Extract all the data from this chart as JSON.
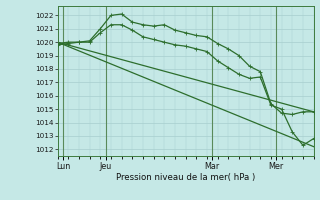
{
  "background_color": "#c5e8e6",
  "grid_color": "#a8cece",
  "line_color": "#2d6e2d",
  "title": "Pression niveau de la mer( hPa )",
  "xlabel_ticks": [
    "Lun",
    "Jeu",
    "Mar",
    "Mer"
  ],
  "xlabel_tick_positions": [
    0.5,
    4.5,
    14.5,
    20.5
  ],
  "ylim": [
    1011.5,
    1022.7
  ],
  "yticks": [
    1012,
    1013,
    1014,
    1015,
    1016,
    1017,
    1018,
    1019,
    1020,
    1021,
    1022
  ],
  "xlim": [
    0,
    24
  ],
  "series1_x": [
    0,
    1,
    2,
    3,
    4,
    5,
    6,
    7,
    8,
    9,
    10,
    11,
    12,
    13,
    14,
    15,
    16,
    17,
    18,
    19,
    20,
    21,
    22,
    23,
    24
  ],
  "series1_y": [
    1019.9,
    1020.0,
    1020.0,
    1020.1,
    1021.0,
    1022.0,
    1022.1,
    1021.5,
    1021.3,
    1021.2,
    1021.3,
    1020.9,
    1020.7,
    1020.5,
    1020.4,
    1019.9,
    1019.5,
    1019.0,
    1018.2,
    1017.8,
    1015.4,
    1014.7,
    1014.6,
    1014.8,
    1014.8
  ],
  "series2_x": [
    0,
    1,
    2,
    3,
    4,
    5,
    6,
    7,
    8,
    9,
    10,
    11,
    12,
    13,
    14,
    15,
    16,
    17,
    18,
    19,
    20,
    21,
    22,
    23,
    24
  ],
  "series2_y": [
    1019.8,
    1019.9,
    1020.0,
    1020.0,
    1020.7,
    1021.3,
    1021.3,
    1020.9,
    1020.4,
    1020.2,
    1020.0,
    1019.8,
    1019.7,
    1019.5,
    1019.3,
    1018.6,
    1018.1,
    1017.6,
    1017.3,
    1017.4,
    1015.3,
    1015.0,
    1013.3,
    1012.3,
    1012.8
  ],
  "series3_x": [
    0,
    24
  ],
  "series3_y": [
    1020.0,
    1014.8
  ],
  "series4_x": [
    0,
    24
  ],
  "series4_y": [
    1020.0,
    1012.2
  ]
}
